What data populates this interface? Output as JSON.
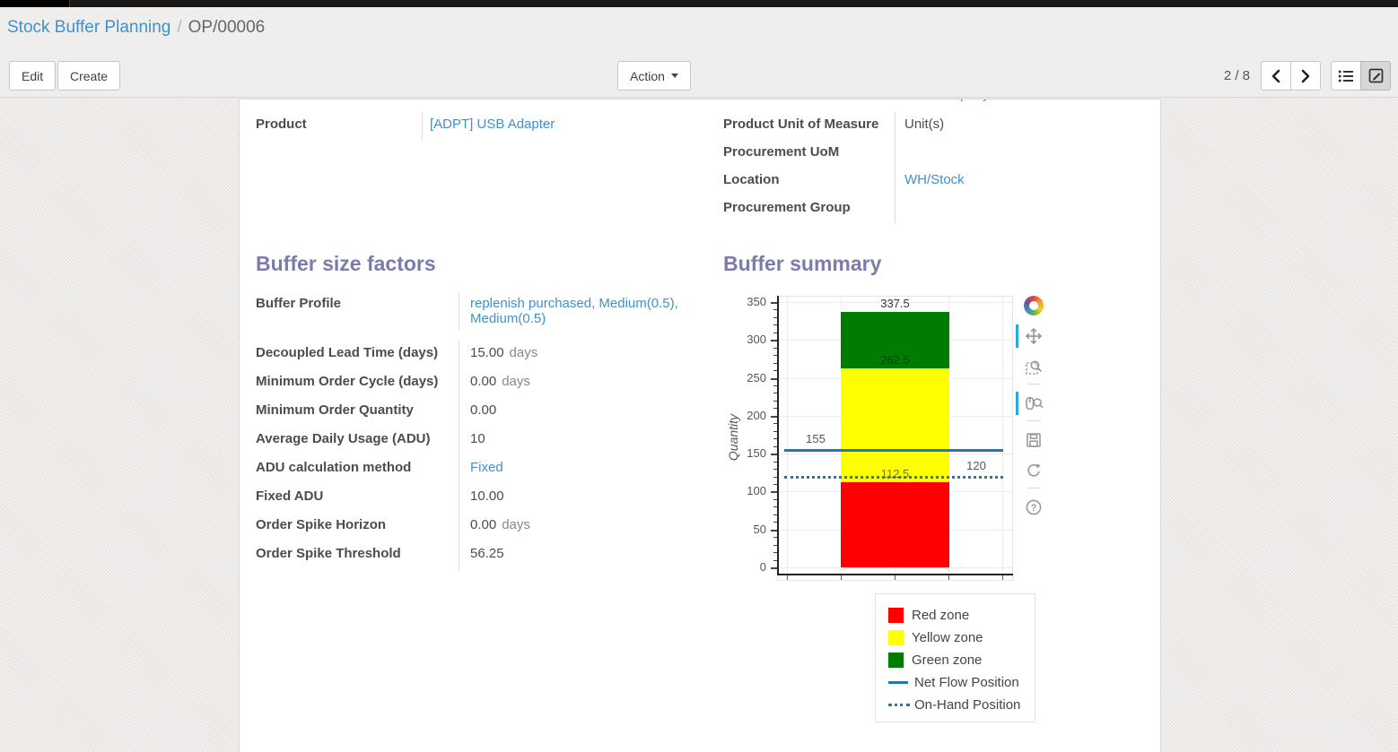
{
  "breadcrumb": {
    "section": "Stock Buffer Planning",
    "separator": "/",
    "record": "OP/00006"
  },
  "toolbar": {
    "edit_label": "Edit",
    "create_label": "Create",
    "action_label": "Action",
    "pager_text": "2 / 8"
  },
  "form": {
    "clipped_row_text": "YourCompany",
    "fields_left": [
      {
        "label": "Product",
        "value": "[ADPT] USB Adapter",
        "link": true
      }
    ],
    "fields_right": [
      {
        "label": "Product Unit of Measure",
        "value": "Unit(s)",
        "link": false
      },
      {
        "label": "Procurement UoM",
        "value": "",
        "link": false
      },
      {
        "label": "Location",
        "value": "WH/Stock",
        "link": true
      },
      {
        "label": "Procurement Group",
        "value": "",
        "link": false
      }
    ],
    "buffer_factors": {
      "title": "Buffer size factors",
      "rows": [
        {
          "label": "Buffer Profile",
          "value": "replenish purchased, Medium(0.5), Medium(0.5)",
          "link": true,
          "tall": true
        },
        {
          "label": "Decoupled Lead Time (days)",
          "value": "15.00",
          "suffix": "days"
        },
        {
          "label": "Minimum Order Cycle (days)",
          "value": "0.00",
          "suffix": "days"
        },
        {
          "label": "Minimum Order Quantity",
          "value": "0.00"
        },
        {
          "label": "Average Daily Usage (ADU)",
          "value": "10"
        },
        {
          "label": "ADU calculation method",
          "value": "Fixed",
          "link": true
        },
        {
          "label": "Fixed ADU",
          "value": "10.00"
        },
        {
          "label": "Order Spike Horizon",
          "value": "0.00",
          "suffix": "days"
        },
        {
          "label": "Order Spike Threshold",
          "value": "56.25"
        }
      ]
    },
    "buffer_summary": {
      "title": "Buffer summary"
    }
  },
  "chart_data": {
    "type": "bar",
    "title": "Buffer summary",
    "xlabel": "",
    "ylabel": "Quantity",
    "ylim": [
      0,
      350
    ],
    "y_major_ticks": [
      0,
      50,
      100,
      150,
      200,
      250,
      300,
      350
    ],
    "y_minor_step": 10,
    "grid": true,
    "zones": [
      {
        "name": "Red zone",
        "from": 0,
        "to": 112.5,
        "color": "#fe0000",
        "label": "112.5",
        "label_color": "rgba(0,0,0,0.55)"
      },
      {
        "name": "Yellow zone",
        "from": 112.5,
        "to": 262.5,
        "color": "#ffff00",
        "label": "262.5",
        "label_color": "rgba(0,0,0,0.5)"
      },
      {
        "name": "Green zone",
        "from": 262.5,
        "to": 337.5,
        "color": "#007c00",
        "label": "337.5",
        "label_color": "#333333"
      }
    ],
    "lines": [
      {
        "name": "Net Flow Position",
        "value": 155,
        "style": "solid",
        "color": "#1f77b4",
        "label": "155",
        "label_side": "left"
      },
      {
        "name": "On-Hand Position",
        "value": 120,
        "style": "dotted",
        "color": "#1f77b4",
        "label": "120",
        "label_side": "right"
      }
    ],
    "legend_position": "below-right",
    "legend": [
      "Red zone",
      "Yellow zone",
      "Green zone",
      "Net Flow Position",
      "On-Hand Position"
    ],
    "bokeh_tools": [
      {
        "name": "bokeh-logo",
        "active": false
      },
      {
        "name": "pan-tool",
        "active": true
      },
      {
        "name": "box-zoom-tool",
        "active": false
      },
      {
        "name": "wheel-zoom-tool",
        "active": true
      },
      {
        "name": "save-tool",
        "active": false
      },
      {
        "name": "reset-tool",
        "active": false
      },
      {
        "name": "help-tool",
        "active": false
      }
    ]
  }
}
